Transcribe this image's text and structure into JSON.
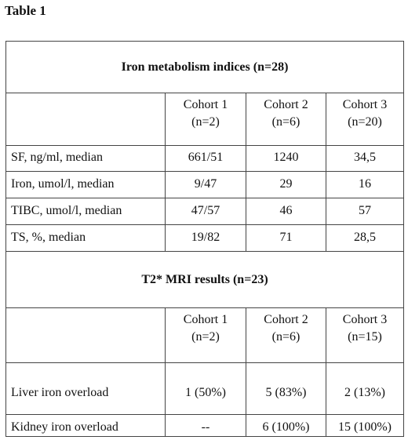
{
  "title": "Table 1",
  "sections": [
    {
      "heading": "Iron metabolism indices (n=28)",
      "columns": [
        {
          "name": "Cohort 1",
          "n": "(n=2)"
        },
        {
          "name": "Cohort 2",
          "n": "(n=6)"
        },
        {
          "name": "Cohort 3",
          "n": "(n=20)"
        }
      ],
      "rows": [
        {
          "label": "SF, ng/ml, median",
          "values": [
            "661/51",
            "1240",
            "34,5"
          ]
        },
        {
          "label": "Iron,  umol/l, median",
          "values": [
            "9/47",
            "29",
            "16"
          ]
        },
        {
          "label": "TIBC, umol/l, median",
          "values": [
            "47/57",
            "46",
            "57"
          ]
        },
        {
          "label": "TS, %, median",
          "values": [
            "19/82",
            "71",
            "28,5"
          ]
        }
      ]
    },
    {
      "heading": "T2* MRI results (n=23)",
      "columns": [
        {
          "name": "Cohort 1",
          "n": "(n=2)"
        },
        {
          "name": "Cohort 2",
          "n": "(n=6)"
        },
        {
          "name": "Cohort 3",
          "n": "(n=15)"
        }
      ],
      "rows": [
        {
          "label": "Liver iron overload",
          "values": [
            "1 (50%)",
            "5 (83%)",
            "2 (13%)"
          ]
        },
        {
          "label": "Kidney iron overload",
          "values": [
            "--",
            "6 (100%)",
            "15 (100%)"
          ]
        }
      ]
    }
  ]
}
